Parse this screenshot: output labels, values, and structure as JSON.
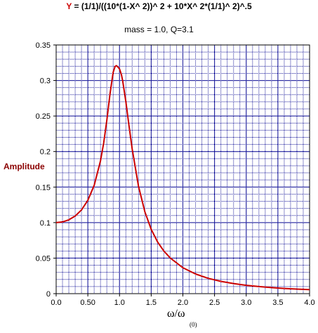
{
  "chart_data": {
    "type": "line",
    "title_symbol": "Y",
    "title_formula": "= (1/1)/((10*(1-X^ 2))^ 2 + 10*X^ 2*(1/1)^ 2)^.5",
    "subtitle": "mass = 1.0, Q=3.1",
    "ylabel": "Amplitude",
    "xlabel": "ω/ω",
    "xlabel_subscript": "(0)",
    "xlim": [
      0,
      4.0
    ],
    "ylim": [
      0,
      0.35
    ],
    "grid": true,
    "x_ticks": [
      {
        "value": 0.0,
        "label": "0.0"
      },
      {
        "value": 0.5,
        "label": "0.50"
      },
      {
        "value": 1.0,
        "label": "1.0"
      },
      {
        "value": 1.5,
        "label": "1.5"
      },
      {
        "value": 2.0,
        "label": "2.0"
      },
      {
        "value": 2.5,
        "label": "2.5"
      },
      {
        "value": 3.0,
        "label": "3.0"
      },
      {
        "value": 3.5,
        "label": "3.5"
      },
      {
        "value": 4.0,
        "label": "4.0"
      }
    ],
    "y_ticks": [
      {
        "value": 0,
        "label": "0"
      },
      {
        "value": 0.05,
        "label": "0.05"
      },
      {
        "value": 0.1,
        "label": "0.1"
      },
      {
        "value": 0.15,
        "label": "0.15"
      },
      {
        "value": 0.2,
        "label": "0.2"
      },
      {
        "value": 0.25,
        "label": "0.25"
      },
      {
        "value": 0.3,
        "label": "0.3"
      },
      {
        "value": 0.35,
        "label": "0.35"
      }
    ],
    "series": [
      {
        "color": "#cc0000",
        "x": [
          0.0,
          0.1,
          0.2,
          0.3,
          0.4,
          0.5,
          0.6,
          0.7,
          0.75,
          0.8,
          0.85,
          0.9,
          0.93,
          0.95,
          0.97,
          1.0,
          1.03,
          1.05,
          1.1,
          1.15,
          1.2,
          1.3,
          1.4,
          1.5,
          1.6,
          1.7,
          1.8,
          2.0,
          2.2,
          2.4,
          2.6,
          2.8,
          3.0,
          3.2,
          3.4,
          3.6,
          3.8,
          4.0
        ],
        "y": [
          0.1,
          0.1009,
          0.1039,
          0.1093,
          0.1179,
          0.1313,
          0.1526,
          0.1872,
          0.2121,
          0.2441,
          0.2811,
          0.3115,
          0.3196,
          0.3209,
          0.3194,
          0.3162,
          0.3082,
          0.2993,
          0.2701,
          0.2361,
          0.2036,
          0.1512,
          0.1154,
          0.0905,
          0.0729,
          0.06,
          0.0502,
          0.0365,
          0.0277,
          0.0216,
          0.0173,
          0.0142,
          0.0118,
          0.01,
          0.0085,
          0.0073,
          0.0064,
          0.0056
        ]
      }
    ]
  }
}
